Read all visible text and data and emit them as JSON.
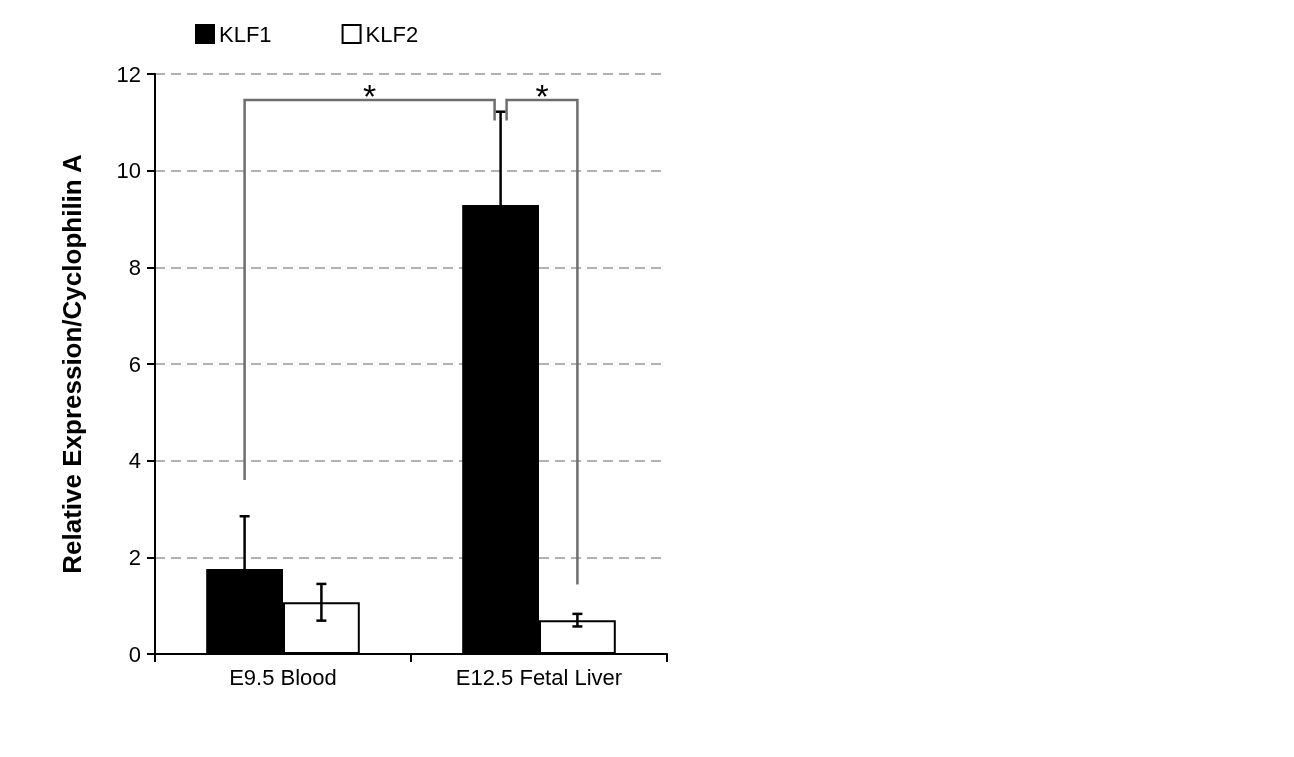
{
  "chart_data": {
    "type": "bar",
    "ylabel": "Relative Expression/Cyclophilin A",
    "categories": [
      "E9.5 Blood",
      "E12.5 Fetal Liver"
    ],
    "series": [
      {
        "name": "KLF1",
        "color": "#000000",
        "values": [
          1.76,
          9.29
        ],
        "errors": [
          1.09,
          1.93
        ]
      },
      {
        "name": "KLF2",
        "color": "#ffffff",
        "values": [
          1.07,
          0.7
        ],
        "errors": [
          0.38,
          0.13
        ]
      }
    ],
    "ylim": [
      0,
      12
    ],
    "yticks": [
      0,
      2,
      4,
      6,
      8,
      10,
      12
    ],
    "grid": "y",
    "legend": "top",
    "annotations": [
      "*",
      "*"
    ]
  }
}
